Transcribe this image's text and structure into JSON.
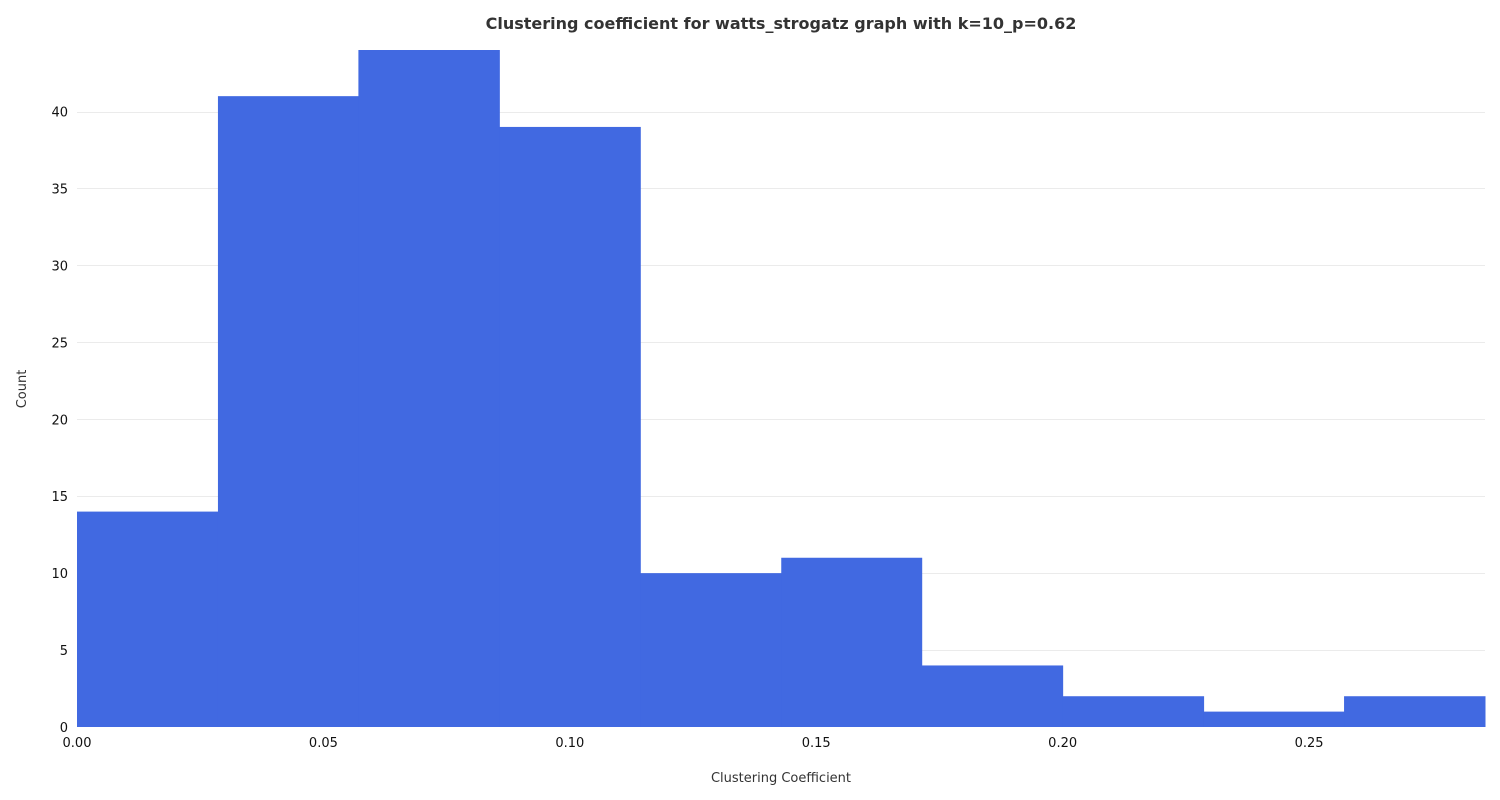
{
  "chart_data": {
    "type": "bar",
    "title": "Clustering coefficient for watts_strogatz graph with k=10_p=0.62",
    "xlabel": "Clustering Coefficient",
    "ylabel": "Count",
    "bin_edges": [
      0.0,
      0.0286,
      0.0571,
      0.0857,
      0.1143,
      0.1429,
      0.1714,
      0.2,
      0.2286,
      0.2571,
      0.2857
    ],
    "values": [
      14,
      41,
      44,
      39,
      10,
      11,
      4,
      2,
      1,
      2
    ],
    "xlim": [
      0.0,
      0.2857
    ],
    "ylim": [
      0,
      44
    ],
    "xticks": [
      {
        "value": 0.0,
        "label": "0.00"
      },
      {
        "value": 0.05,
        "label": "0.05"
      },
      {
        "value": 0.1,
        "label": "0.10"
      },
      {
        "value": 0.15,
        "label": "0.15"
      },
      {
        "value": 0.2,
        "label": "0.20"
      },
      {
        "value": 0.25,
        "label": "0.25"
      }
    ],
    "yticks": [
      {
        "value": 0,
        "label": "0"
      },
      {
        "value": 5,
        "label": "5"
      },
      {
        "value": 10,
        "label": "10"
      },
      {
        "value": 15,
        "label": "15"
      },
      {
        "value": 20,
        "label": "20"
      },
      {
        "value": 25,
        "label": "25"
      },
      {
        "value": 30,
        "label": "30"
      },
      {
        "value": 35,
        "label": "35"
      },
      {
        "value": 40,
        "label": "40"
      }
    ],
    "grid": "horizontal",
    "bar_color": "#4169E1"
  }
}
